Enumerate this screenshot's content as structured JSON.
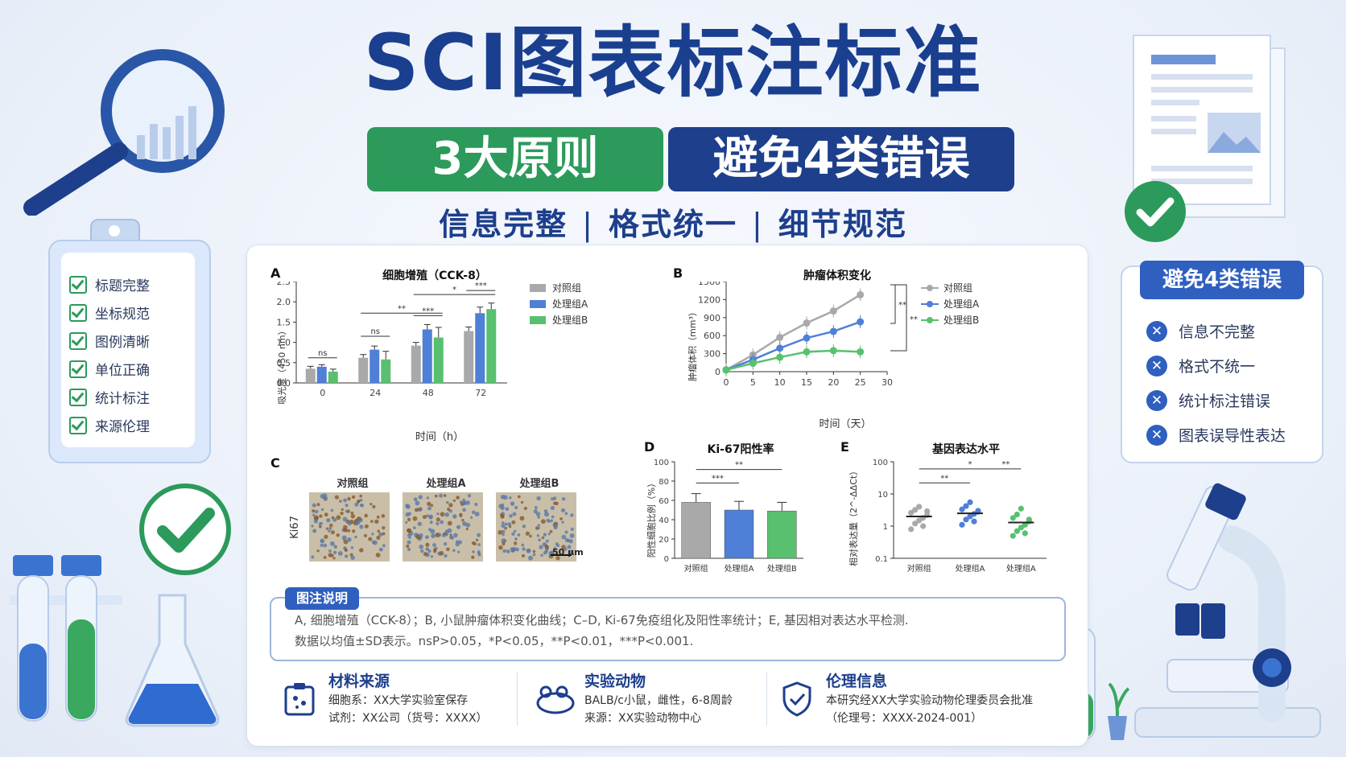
{
  "header": {
    "title": "SCI图表标注标准",
    "pill_green": "3大原则",
    "pill_blue": "避免4类错误",
    "principles": [
      "信息完整",
      "格式统一",
      "细节规范"
    ]
  },
  "checklist": {
    "items": [
      "标题完整",
      "坐标规范",
      "图例清晰",
      "单位正确",
      "统计标注",
      "来源伦理"
    ]
  },
  "errors": {
    "title": "避免4类错误",
    "items": [
      "信息不完整",
      "格式不统一",
      "统计标注错误",
      "图表误导性表达"
    ]
  },
  "colors": {
    "control": "#a9a9a9",
    "groupA": "#4f7fd6",
    "groupB": "#58c06f",
    "brand": "#1d3f8c",
    "green": "#2b9a5a"
  },
  "panels": {
    "A": {
      "label": "A",
      "chart_data": {
        "type": "bar",
        "title": "细胞增殖（CCK-8）",
        "xlabel": "时间（h）",
        "ylabel": "吸光度（450 nm）",
        "categories": [
          "0",
          "24",
          "48",
          "72"
        ],
        "ylim": [
          0,
          2.5
        ],
        "yticks": [
          "0.0",
          "0.5",
          "1.0",
          "1.5",
          "2.0",
          "2.5"
        ],
        "series": [
          {
            "name": "对照组",
            "values": [
              0.35,
              0.62,
              0.92,
              1.28
            ],
            "errors": [
              0.06,
              0.08,
              0.08,
              0.1
            ]
          },
          {
            "name": "处理组A",
            "values": [
              0.4,
              0.82,
              1.32,
              1.72
            ],
            "errors": [
              0.05,
              0.09,
              0.12,
              0.15
            ]
          },
          {
            "name": "处理组B",
            "values": [
              0.28,
              0.58,
              1.12,
              1.82
            ],
            "errors": [
              0.06,
              0.2,
              0.25,
              0.15
            ]
          }
        ],
        "annotations": [
          "ns",
          "ns",
          "**",
          "***",
          "*",
          "***"
        ],
        "legend_position": "right"
      }
    },
    "B": {
      "label": "B",
      "chart_data": {
        "type": "line",
        "title": "肿瘤体积变化",
        "xlabel": "时间（天）",
        "ylabel": "肿瘤体积（mm³）",
        "x": [
          0,
          5,
          10,
          15,
          20,
          25
        ],
        "xticks": [
          "0",
          "5",
          "10",
          "15",
          "20",
          "25",
          "30"
        ],
        "yticks": [
          "0",
          "300",
          "600",
          "900",
          "1200",
          "1500"
        ],
        "xlim": [
          0,
          30
        ],
        "ylim": [
          0,
          1500
        ],
        "series": [
          {
            "name": "对照组",
            "values": [
              30,
              280,
              570,
              810,
              1010,
              1280
            ]
          },
          {
            "name": "处理组A",
            "values": [
              30,
              200,
              390,
              560,
              670,
              830
            ]
          },
          {
            "name": "处理组B",
            "values": [
              30,
              140,
              240,
              330,
              350,
              330
            ]
          }
        ],
        "annotations": [
          "**",
          "**"
        ],
        "legend_position": "right"
      }
    },
    "C": {
      "label": "C",
      "ylabel": "Ki67",
      "groups": [
        "对照组",
        "处理组A",
        "处理组B"
      ],
      "scale": "50 μm"
    },
    "D": {
      "label": "D",
      "chart_data": {
        "type": "bar",
        "title": "Ki-67阳性率",
        "ylabel": "阳性细胞比例（%）",
        "categories": [
          "对照组",
          "处理组A",
          "处理组B"
        ],
        "values": [
          58,
          50,
          49
        ],
        "errors": [
          9,
          9,
          9
        ],
        "ylim": [
          0,
          100
        ],
        "yticks": [
          "0",
          "20",
          "40",
          "60",
          "80",
          "100"
        ],
        "annotations": [
          "***",
          "**"
        ]
      }
    },
    "E": {
      "label": "E",
      "chart_data": {
        "type": "scatter",
        "title": "基因表达水平",
        "ylabel": "相对表达量（2^-ΔΔCt）",
        "categories": [
          "对照组",
          "处理组A",
          "处理组A"
        ],
        "yticks": [
          "0.1",
          "1",
          "10",
          "100"
        ],
        "ylim": [
          0.1,
          100
        ],
        "log_scale": true,
        "means": [
          2.0,
          2.5,
          1.3
        ],
        "annotations": [
          "**",
          "*",
          "**"
        ]
      }
    }
  },
  "caption": {
    "tag": "图注说明",
    "line1": "A, 细胞增殖（CCK-8）；B, 小鼠肿瘤体积变化曲线；C–D, Ki-67免疫组化及阳性率统计；E, 基因相对表达水平检测.",
    "line2": "数据以均值±SD表示。nsP>0.05，*P<0.05，**P<0.01，***P<0.001."
  },
  "info": [
    {
      "title": "材料来源",
      "lines": [
        "细胞系：XX大学实验室保存",
        "试剂：XX公司（货号：XXXX）"
      ],
      "icon": "cell-icon"
    },
    {
      "title": "实验动物",
      "lines": [
        "BALB/c小鼠，雌性，6-8周龄",
        "来源：XX实验动物中心"
      ],
      "icon": "mouse-icon"
    },
    {
      "title": "伦理信息",
      "lines": [
        "本研究经XX大学实验动物伦理委员会批准",
        "（伦理号：XXXX-2024-001）"
      ],
      "icon": "shield-icon"
    }
  ]
}
